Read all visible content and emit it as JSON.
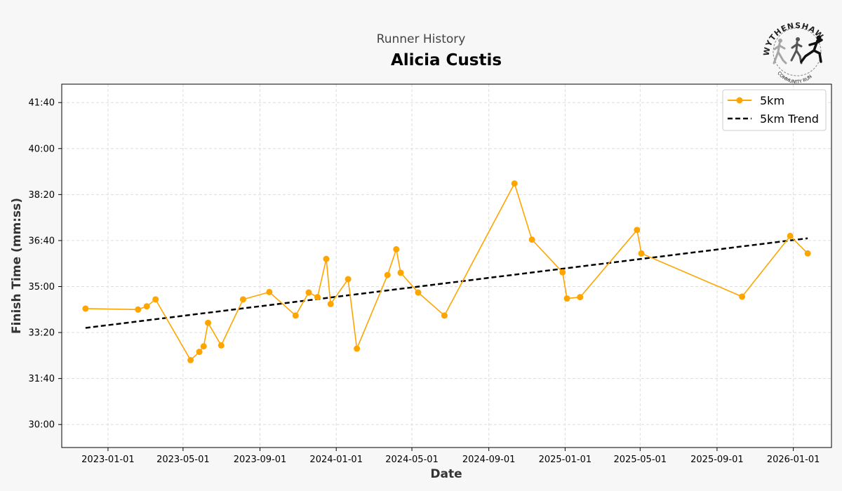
{
  "header": {
    "subtitle": "Runner History",
    "runner_name": "Alicia Custis"
  },
  "logo": {
    "top_text": "WYTHENSHAWE",
    "bottom_text": "COMMUNITY RUN"
  },
  "colors": {
    "series": "#FFA500",
    "trend": "#000000",
    "grid": "#dddddd",
    "background": "#f7f7f7",
    "plot_background": "#ffffff"
  },
  "chart_data": {
    "type": "line",
    "title": "Alicia Custis",
    "subtitle": "Runner History",
    "xlabel": "Date",
    "ylabel": "Finish Time (mm:ss)",
    "x_ticks": [
      "2023-01-01",
      "2023-05-01",
      "2023-09-01",
      "2024-01-01",
      "2024-05-01",
      "2024-09-01",
      "2025-01-01",
      "2025-05-01",
      "2025-09-01",
      "2026-01-01"
    ],
    "y_ticks": [
      "30:00",
      "31:40",
      "33:20",
      "35:00",
      "36:40",
      "38:20",
      "40:00",
      "41:40"
    ],
    "xlim": [
      "2022-10-19",
      "2026-03-03"
    ],
    "ylim": [
      "29:10",
      "42:20"
    ],
    "grid": true,
    "legend_position": "top-right",
    "series": [
      {
        "name": "5km",
        "style": "solid line with circle markers",
        "color": "#FFA500",
        "points": [
          {
            "x": "2022-11-26",
            "y": "34:12"
          },
          {
            "x": "2023-02-18",
            "y": "34:10"
          },
          {
            "x": "2023-03-04",
            "y": "34:17"
          },
          {
            "x": "2023-03-18",
            "y": "34:32"
          },
          {
            "x": "2023-05-13",
            "y": "32:20"
          },
          {
            "x": "2023-05-27",
            "y": "32:38"
          },
          {
            "x": "2023-06-03",
            "y": "32:50"
          },
          {
            "x": "2023-06-10",
            "y": "33:41"
          },
          {
            "x": "2023-07-01",
            "y": "32:52"
          },
          {
            "x": "2023-08-05",
            "y": "34:32"
          },
          {
            "x": "2023-09-16",
            "y": "34:48"
          },
          {
            "x": "2023-10-28",
            "y": "33:57"
          },
          {
            "x": "2023-11-18",
            "y": "34:47"
          },
          {
            "x": "2023-12-02",
            "y": "34:37"
          },
          {
            "x": "2023-12-16",
            "y": "36:00"
          },
          {
            "x": "2023-12-23",
            "y": "34:22"
          },
          {
            "x": "2024-01-20",
            "y": "35:16"
          },
          {
            "x": "2024-02-03",
            "y": "32:45"
          },
          {
            "x": "2024-03-23",
            "y": "35:25"
          },
          {
            "x": "2024-04-06",
            "y": "36:21"
          },
          {
            "x": "2024-04-13",
            "y": "35:30"
          },
          {
            "x": "2024-05-11",
            "y": "34:47"
          },
          {
            "x": "2024-06-22",
            "y": "33:57"
          },
          {
            "x": "2024-10-12",
            "y": "38:44"
          },
          {
            "x": "2024-11-09",
            "y": "36:42"
          },
          {
            "x": "2024-12-28",
            "y": "35:31"
          },
          {
            "x": "2025-01-04",
            "y": "34:34"
          },
          {
            "x": "2025-01-25",
            "y": "34:37"
          },
          {
            "x": "2025-04-26",
            "y": "37:03"
          },
          {
            "x": "2025-05-03",
            "y": "36:12"
          },
          {
            "x": "2025-10-11",
            "y": "34:38"
          },
          {
            "x": "2025-12-27",
            "y": "36:50"
          },
          {
            "x": "2026-01-24",
            "y": "36:12"
          }
        ]
      },
      {
        "name": "5km Trend",
        "style": "dashed line",
        "color": "#000000",
        "points": [
          {
            "x": "2022-11-26",
            "y": "33:30"
          },
          {
            "x": "2026-01-24",
            "y": "36:45"
          }
        ]
      }
    ]
  }
}
